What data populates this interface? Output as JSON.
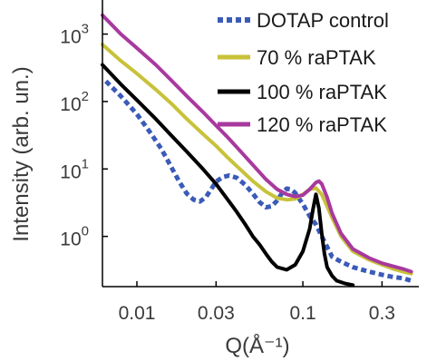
{
  "chart_data": {
    "type": "line",
    "xlabel": "Q(Å⁻¹)",
    "ylabel": "Intensity (arb. un.)",
    "xscale": "log",
    "yscale": "log",
    "xlim": [
      0.0062,
      0.5
    ],
    "ylim": [
      0.18,
      3200
    ],
    "x_ticks": [
      {
        "value": 0.01,
        "label": "0.01"
      },
      {
        "value": 0.03,
        "label": "0.03"
      },
      {
        "value": 0.1,
        "label": "0.1"
      },
      {
        "value": 0.3,
        "label": "0.3"
      }
    ],
    "y_ticks": [
      {
        "value": 1,
        "base": "10",
        "exp": "0"
      },
      {
        "value": 10,
        "base": "10",
        "exp": "1"
      },
      {
        "value": 100,
        "base": "10",
        "exp": "2"
      },
      {
        "value": 1000,
        "base": "10",
        "exp": "3"
      }
    ],
    "legend_position": "top-right",
    "series": [
      {
        "name": "DOTAP control",
        "color": "#3b5bb8",
        "style": "dotted",
        "x": [
          0.0065,
          0.008,
          0.01,
          0.012,
          0.014,
          0.016,
          0.018,
          0.02,
          0.022,
          0.024,
          0.026,
          0.028,
          0.03,
          0.033,
          0.036,
          0.04,
          0.045,
          0.05,
          0.055,
          0.06,
          0.065,
          0.07,
          0.075,
          0.08,
          0.085,
          0.09,
          0.1,
          0.11,
          0.12,
          0.13,
          0.14,
          0.15,
          0.17,
          0.2,
          0.25,
          0.3,
          0.35,
          0.4,
          0.45
        ],
        "y": [
          200,
          120,
          65,
          35,
          20,
          11,
          6.5,
          4.3,
          3.5,
          3.3,
          3.8,
          5.0,
          6.5,
          7.6,
          8.0,
          7.4,
          5.8,
          4.3,
          3.2,
          2.7,
          2.8,
          3.4,
          4.4,
          5.1,
          5.0,
          4.4,
          3.0,
          2.0,
          1.5,
          1.0,
          0.7,
          0.5,
          0.42,
          0.35,
          0.3,
          0.27,
          0.25,
          0.24,
          0.22
        ]
      },
      {
        "name": "70 % raPTAK",
        "color": "#c8c23a",
        "style": "solid",
        "x": [
          0.0062,
          0.008,
          0.01,
          0.013,
          0.016,
          0.02,
          0.025,
          0.03,
          0.035,
          0.04,
          0.05,
          0.06,
          0.07,
          0.08,
          0.09,
          0.1,
          0.11,
          0.12,
          0.13,
          0.14,
          0.15,
          0.17,
          0.2,
          0.25,
          0.3,
          0.35,
          0.4,
          0.45
        ],
        "y": [
          700,
          400,
          260,
          150,
          95,
          55,
          33,
          22,
          15,
          11,
          6.6,
          4.6,
          3.7,
          3.5,
          3.6,
          4.2,
          5.0,
          5.2,
          4.2,
          2.8,
          1.9,
          1.0,
          0.6,
          0.45,
          0.38,
          0.33,
          0.3,
          0.28
        ]
      },
      {
        "name": "100 % raPTAK",
        "color": "#000000",
        "style": "solid",
        "x": [
          0.0062,
          0.008,
          0.01,
          0.013,
          0.016,
          0.02,
          0.025,
          0.03,
          0.035,
          0.04,
          0.045,
          0.05,
          0.055,
          0.06,
          0.065,
          0.07,
          0.08,
          0.09,
          0.1,
          0.11,
          0.115,
          0.12,
          0.125,
          0.13,
          0.135,
          0.14,
          0.15,
          0.16,
          0.18,
          0.2
        ],
        "y": [
          350,
          180,
          105,
          55,
          32,
          18,
          10,
          6.0,
          3.6,
          2.3,
          1.5,
          1.0,
          0.75,
          0.55,
          0.42,
          0.35,
          0.32,
          0.38,
          0.6,
          1.3,
          2.5,
          4.2,
          2.6,
          1.1,
          0.55,
          0.35,
          0.26,
          0.22,
          0.2,
          0.19
        ]
      },
      {
        "name": "120 % raPTAK",
        "color": "#a8399e",
        "style": "solid",
        "x": [
          0.0062,
          0.008,
          0.01,
          0.013,
          0.016,
          0.02,
          0.025,
          0.03,
          0.035,
          0.04,
          0.05,
          0.06,
          0.07,
          0.08,
          0.09,
          0.1,
          0.11,
          0.12,
          0.125,
          0.13,
          0.14,
          0.15,
          0.17,
          0.2,
          0.25,
          0.3,
          0.35,
          0.4,
          0.45
        ],
        "y": [
          1900,
          1000,
          620,
          350,
          210,
          120,
          70,
          44,
          30,
          21,
          11.5,
          7.0,
          5.0,
          4.2,
          3.9,
          4.1,
          5.0,
          6.3,
          6.6,
          6.0,
          3.8,
          2.2,
          1.1,
          0.65,
          0.48,
          0.4,
          0.36,
          0.33,
          0.3
        ]
      }
    ]
  }
}
